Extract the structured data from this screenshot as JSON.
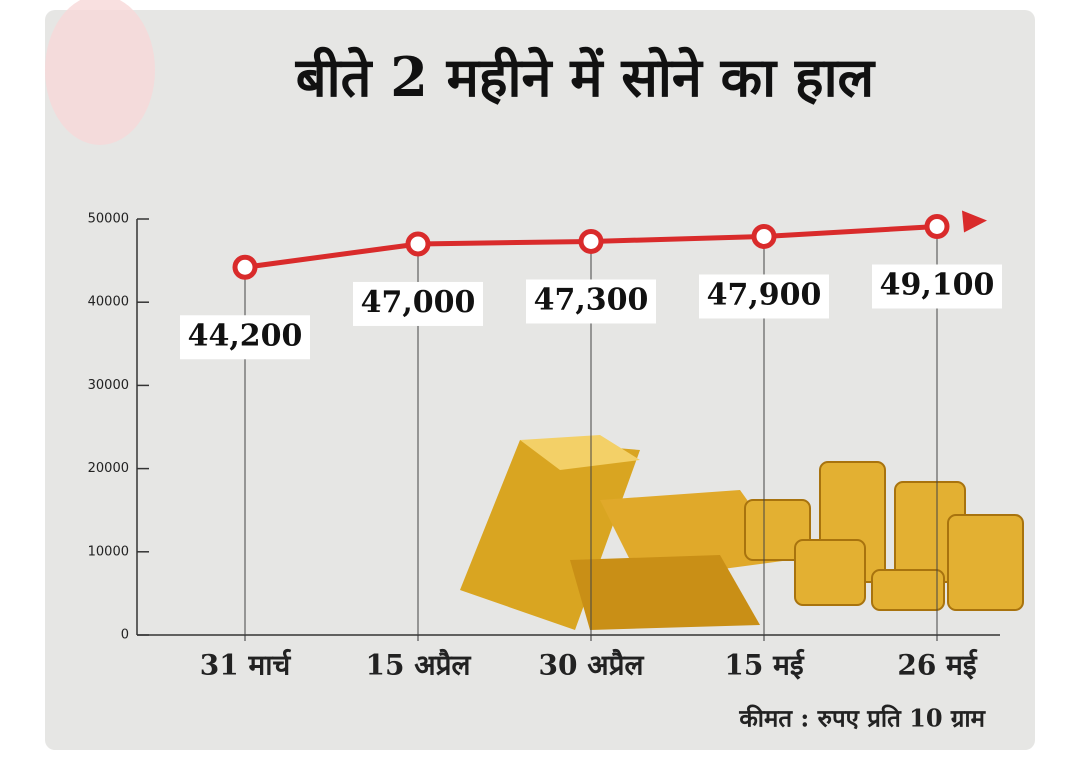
{
  "chart_data": {
    "type": "line",
    "title": "बीते 2 महीने में सोने का हाल",
    "note": "कीमत : रुपए प्रति 10 ग्राम",
    "categories": [
      "31 मार्च",
      "15 अप्रैल",
      "30 अप्रैल",
      "15 मई",
      "26 मई"
    ],
    "values": [
      44200,
      47000,
      47300,
      47900,
      49100
    ],
    "value_labels": [
      "44,200",
      "47,000",
      "47,300",
      "47,900",
      "49,100"
    ],
    "color": "#d92b2b",
    "ylim": [
      0,
      50000
    ],
    "yticks": [
      0,
      10000,
      20000,
      30000,
      40000,
      50000
    ]
  }
}
